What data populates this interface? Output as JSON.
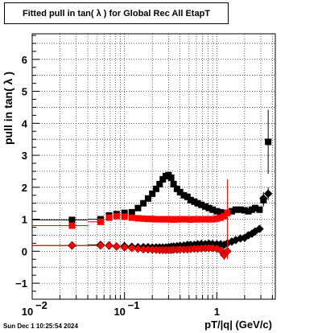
{
  "chart_data": {
    "type": "scatter",
    "title": "Fitted pull in tan( λ ) for Global Rec All EtapT",
    "xlabel": "pT/|q| (GeV/c)",
    "ylabel": "pull in tan( λ )",
    "x_scale": "log",
    "xlim": [
      0.01,
      4.3
    ],
    "ylim": [
      -1.5,
      6.8
    ],
    "grid": true,
    "x_ticks": [
      {
        "value": 0.01,
        "base": "10",
        "exp": "−2"
      },
      {
        "value": 0.1,
        "base": "10",
        "exp": "−1"
      },
      {
        "value": 1,
        "base": "1",
        "exp": ""
      }
    ],
    "y_ticks": [
      -1,
      0,
      1,
      2,
      3,
      4,
      5,
      6
    ],
    "series": [
      {
        "color": "#000000",
        "marker": "square",
        "x": [
          0.027,
          0.055,
          0.068,
          0.082,
          0.1,
          0.12,
          0.14,
          0.16,
          0.18,
          0.2,
          0.22,
          0.24,
          0.26,
          0.28,
          0.3,
          0.32,
          0.34,
          0.37,
          0.4,
          0.44,
          0.48,
          0.52,
          0.57,
          0.62,
          0.68,
          0.75,
          0.82,
          0.9,
          1.0,
          1.1,
          1.2,
          1.3,
          1.45,
          1.6,
          1.8,
          2.0,
          2.2,
          2.4,
          2.6,
          2.9,
          3.2,
          3.6
        ],
        "y": [
          0.98,
          1.0,
          1.12,
          1.16,
          1.2,
          1.22,
          1.35,
          1.5,
          1.65,
          1.8,
          1.95,
          2.1,
          2.25,
          2.35,
          2.38,
          2.3,
          2.1,
          1.95,
          1.85,
          1.75,
          1.7,
          1.6,
          1.55,
          1.5,
          1.45,
          1.4,
          1.35,
          1.3,
          1.25,
          1.22,
          1.2,
          1.2,
          1.25,
          1.3,
          1.3,
          1.28,
          1.25,
          1.3,
          1.35,
          1.3,
          1.6,
          3.42
        ],
        "err": [
          0,
          0,
          0,
          0,
          0,
          0,
          0,
          0,
          0,
          0,
          0,
          0,
          0,
          0,
          0,
          0,
          0,
          0,
          0,
          0,
          0,
          0,
          0,
          0,
          0,
          0,
          0,
          0,
          0,
          0,
          0,
          0,
          0,
          0,
          0,
          0,
          0,
          0,
          0,
          0,
          0.2,
          1.0
        ]
      },
      {
        "color": "#000000",
        "marker": "diamond",
        "x": [
          0.027,
          0.055,
          0.068,
          0.082,
          0.1,
          0.12,
          0.14,
          0.16,
          0.18,
          0.2,
          0.22,
          0.24,
          0.26,
          0.28,
          0.3,
          0.32,
          0.34,
          0.37,
          0.4,
          0.44,
          0.48,
          0.52,
          0.57,
          0.62,
          0.68,
          0.75,
          0.82,
          0.9,
          1.0,
          1.1,
          1.2,
          1.3,
          1.45,
          1.6,
          1.8,
          2.0,
          2.2,
          2.4,
          2.6,
          2.9,
          3.2,
          3.6
        ],
        "y": [
          0.18,
          0.2,
          0.18,
          0.15,
          0.16,
          0.14,
          0.13,
          0.13,
          0.13,
          0.12,
          0.12,
          0.12,
          0.12,
          0.12,
          0.13,
          0.14,
          0.15,
          0.16,
          0.17,
          0.18,
          0.2,
          0.2,
          0.2,
          0.22,
          0.23,
          0.22,
          0.24,
          0.23,
          0.22,
          0.22,
          0.2,
          0.25,
          0.3,
          0.35,
          0.4,
          0.42,
          0.5,
          0.55,
          0.62,
          0.7,
          1.65,
          1.8
        ],
        "err": [
          0,
          0,
          0,
          0,
          0,
          0,
          0,
          0,
          0,
          0,
          0,
          0,
          0,
          0,
          0,
          0,
          0,
          0,
          0,
          0,
          0,
          0,
          0,
          0,
          0,
          0,
          0,
          0,
          0,
          0,
          0,
          0,
          0,
          0,
          0,
          0,
          0,
          0,
          0,
          0,
          0.2,
          0.2
        ]
      },
      {
        "color": "#ff0000",
        "marker": "square",
        "x": [
          0.027,
          0.055,
          0.068,
          0.082,
          0.1,
          0.12,
          0.14,
          0.16,
          0.18,
          0.2,
          0.22,
          0.24,
          0.26,
          0.28,
          0.3,
          0.32,
          0.34,
          0.37,
          0.4,
          0.44,
          0.48,
          0.52,
          0.57,
          0.62,
          0.68,
          0.75,
          0.82,
          0.9,
          1.0,
          1.1,
          1.2,
          1.3
        ],
        "y": [
          0.8,
          0.92,
          1.05,
          1.1,
          1.08,
          1.05,
          1.03,
          1.02,
          1.01,
          1.01,
          1.0,
          1.0,
          1.0,
          1.0,
          1.0,
          1.0,
          0.99,
          1.0,
          1.0,
          1.0,
          1.0,
          0.99,
          1.0,
          1.0,
          1.0,
          1.0,
          1.0,
          1.0,
          1.02,
          1.05,
          1.1,
          1.2
        ],
        "err": [
          0,
          0,
          0,
          0,
          0,
          0,
          0,
          0,
          0,
          0,
          0,
          0,
          0,
          0,
          0,
          0,
          0,
          0,
          0,
          0,
          0,
          0,
          0,
          0,
          0,
          0,
          0,
          0,
          0,
          0,
          0,
          1.05
        ]
      },
      {
        "color": "#ff0000",
        "marker": "diamond",
        "x": [
          0.027,
          0.055,
          0.068,
          0.082,
          0.1,
          0.12,
          0.14,
          0.16,
          0.18,
          0.2,
          0.22,
          0.24,
          0.26,
          0.28,
          0.3,
          0.32,
          0.34,
          0.37,
          0.4,
          0.44,
          0.48,
          0.52,
          0.57,
          0.62,
          0.68,
          0.75,
          0.82,
          0.9,
          1.0,
          1.1,
          1.2,
          1.3
        ],
        "y": [
          0.18,
          0.18,
          0.18,
          0.15,
          0.12,
          0.1,
          0.08,
          0.06,
          0.06,
          0.05,
          0.05,
          0.04,
          0.04,
          0.04,
          0.04,
          0.04,
          0.05,
          0.05,
          0.06,
          0.06,
          0.06,
          0.07,
          0.08,
          0.08,
          0.09,
          0.1,
          0.1,
          0.1,
          0.08,
          0.03,
          -0.12,
          0.0
        ],
        "err": [
          0,
          0,
          0,
          0,
          0,
          0,
          0,
          0,
          0,
          0,
          0,
          0,
          0,
          0,
          0,
          0,
          0,
          0,
          0,
          0,
          0,
          0,
          0,
          0,
          0,
          0,
          0,
          0,
          0,
          0,
          0.15,
          0.25
        ]
      }
    ],
    "x_bar_segments": [
      [
        0.01,
        0.04
      ],
      [
        0.04,
        0.06
      ]
    ],
    "timestamp": "Sun Dec  1 10:25:54 2024"
  }
}
